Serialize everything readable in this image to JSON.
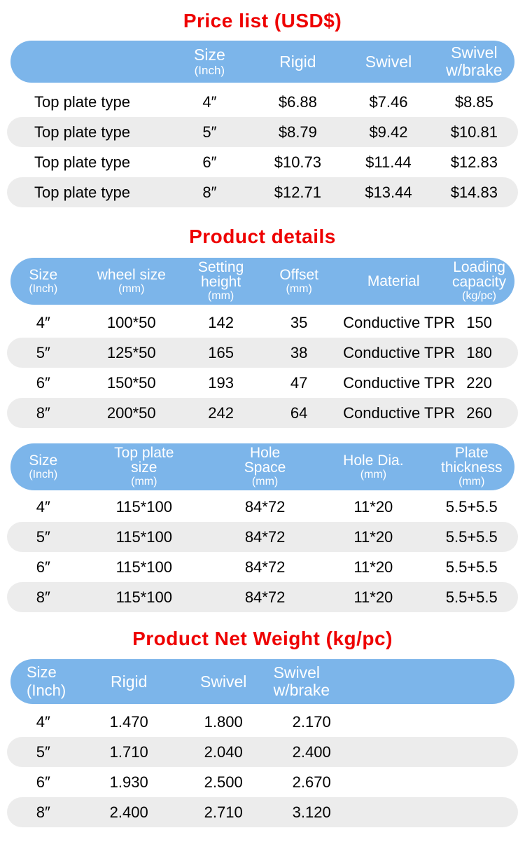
{
  "colors": {
    "header_blue": "#7CB5EA",
    "row_gray": "#ECECEC",
    "title_red": "#EE0000"
  },
  "price_list": {
    "title": "Price list (USD$)",
    "header": {
      "blank": "",
      "size": [
        "Size",
        "(Inch)"
      ],
      "rigid": "Rigid",
      "swivel": "Swivel",
      "swivel_brake": [
        "Swivel",
        "w/brake"
      ]
    },
    "rows": [
      [
        "Top plate type",
        "4″",
        "$6.88",
        "$7.46",
        "$8.85"
      ],
      [
        "Top plate type",
        "5″",
        "$8.79",
        "$9.42",
        "$10.81"
      ],
      [
        "Top plate type",
        "6″",
        "$10.73",
        "$11.44",
        "$12.83"
      ],
      [
        "Top plate type",
        "8″",
        "$12.71",
        "$13.44",
        "$14.83"
      ]
    ]
  },
  "product_details": {
    "title": "Product details",
    "header": {
      "size": [
        "Size",
        "(Inch)"
      ],
      "wheel_size": [
        "wheel size",
        "(mm)"
      ],
      "setting_height": [
        "Setting",
        "height",
        "(mm)"
      ],
      "offset": [
        "Offset",
        "(mm)"
      ],
      "material": "Material",
      "loading": [
        "Loading",
        "capacity",
        "(kg/pc)"
      ]
    },
    "rows": [
      [
        "4″",
        "100*50",
        "142",
        "35",
        "Conductive TPR",
        "150"
      ],
      [
        "5″",
        "125*50",
        "165",
        "38",
        "Conductive TPR",
        "180"
      ],
      [
        "6″",
        "150*50",
        "193",
        "47",
        "Conductive TPR",
        "220"
      ],
      [
        "8″",
        "200*50",
        "242",
        "64",
        "Conductive TPR",
        "260"
      ]
    ]
  },
  "plate_details": {
    "header": {
      "size": [
        "Size",
        "(Inch)"
      ],
      "top_plate": [
        "Top plate",
        "size",
        "(mm)"
      ],
      "hole_space": [
        "Hole",
        "Space",
        "(mm)"
      ],
      "hole_dia": [
        "Hole Dia.",
        "(mm)"
      ],
      "plate_thickness": [
        "Plate",
        "thickness",
        "(mm)"
      ]
    },
    "rows": [
      [
        "4″",
        "115*100",
        "84*72",
        "11*20",
        "5.5+5.5"
      ],
      [
        "5″",
        "115*100",
        "84*72",
        "11*20",
        "5.5+5.5"
      ],
      [
        "6″",
        "115*100",
        "84*72",
        "11*20",
        "5.5+5.5"
      ],
      [
        "8″",
        "115*100",
        "84*72",
        "11*20",
        "5.5+5.5"
      ]
    ]
  },
  "net_weight": {
    "title": "Product Net Weight (kg/pc)",
    "header": {
      "size": [
        "Size",
        "(Inch)"
      ],
      "rigid": "Rigid",
      "swivel": "Swivel",
      "swivel_brake": [
        "Swivel",
        "w/brake"
      ]
    },
    "rows": [
      [
        "4″",
        "1.470",
        "1.800",
        "2.170"
      ],
      [
        "5″",
        "1.710",
        "2.040",
        "2.400"
      ],
      [
        "6″",
        "1.930",
        "2.500",
        "2.670"
      ],
      [
        "8″",
        "2.400",
        "2.710",
        "3.120"
      ]
    ]
  }
}
